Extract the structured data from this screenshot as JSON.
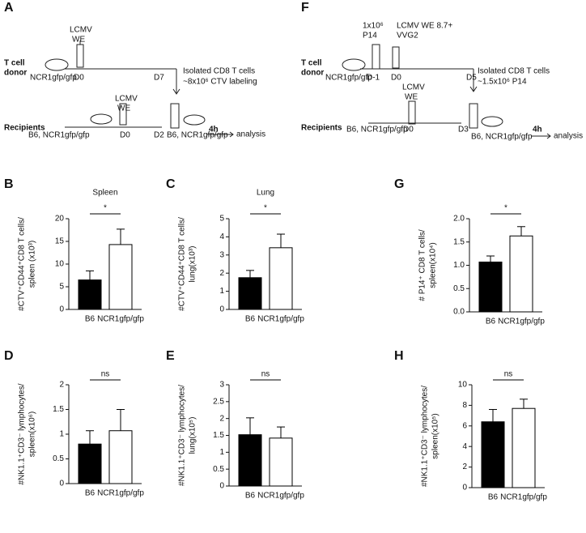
{
  "schematics": [
    {
      "panel": "A",
      "texts": [
        "LCMV",
        "WE",
        "T cell",
        "donor",
        "NCR1gfp/gfp",
        "D0",
        "D7",
        "Isolated CD8 T cells",
        "~8x10⁶ CTV labeling",
        "LCMV",
        "WE",
        "Recipients",
        "B6, NCR1gfp/gfp",
        "D0",
        "D2",
        "B6, NCR1gfp/gfp",
        "4h",
        "analysis"
      ]
    },
    {
      "panel": "F",
      "texts": [
        "1x10⁶",
        "P14",
        "LCMV WE 8.7+",
        "VVG2",
        "T cell",
        "donor",
        "NCR1gfp/gfp",
        "D-1",
        "D0",
        "D5",
        "Isolated CD8 T cells",
        "~1.5x10⁶ P14",
        "LCMV",
        "WE",
        "Recipients",
        "B6, NCR1gfp/gfp",
        "D0",
        "D3",
        "B6, NCR1gfp/gfp",
        "4h",
        "analysis"
      ]
    }
  ],
  "chart_data": [
    {
      "type": "bar",
      "panel": "B",
      "title": "Spleen",
      "ylabel": [
        "#CTV⁺CD44⁺CD8 T cells/",
        "spleen (x10³)"
      ],
      "categories": [
        "B6",
        "NCR1gfp/gfp"
      ],
      "values": [
        6.5,
        14.3
      ],
      "errors": [
        2,
        3.4
      ],
      "colors": [
        "#000000",
        "#ffffff"
      ],
      "ylim": [
        0,
        20
      ],
      "yticks": [
        0,
        5,
        10,
        15,
        20
      ],
      "significance": "*"
    },
    {
      "type": "bar",
      "panel": "C",
      "title": "Lung",
      "ylabel": [
        "#CTV⁺CD44⁺CD8 T cells/",
        "lung(x10³)"
      ],
      "categories": [
        "B6",
        "NCR1gfp/gfp"
      ],
      "values": [
        1.75,
        3.4
      ],
      "errors": [
        0.4,
        0.75
      ],
      "colors": [
        "#000000",
        "#ffffff"
      ],
      "ylim": [
        0,
        5
      ],
      "yticks": [
        0,
        1,
        2,
        3,
        4,
        5
      ],
      "significance": "*"
    },
    {
      "type": "bar",
      "panel": "G",
      "ylabel": [
        "# P14⁺ CD8 T cells/",
        "spleen(x10⁴)"
      ],
      "categories": [
        "B6",
        "NCR1gfp/gfp"
      ],
      "values": [
        1.07,
        1.63
      ],
      "errors": [
        0.13,
        0.2
      ],
      "colors": [
        "#000000",
        "#ffffff"
      ],
      "ylim": [
        0,
        2
      ],
      "yticks": [
        {
          "value": 0,
          "label": "0.0"
        },
        0.5,
        {
          "value": 1,
          "label": "1.0"
        },
        1.5,
        {
          "value": 2,
          "label": "2.0"
        }
      ],
      "significance": "*"
    },
    {
      "type": "bar",
      "panel": "D",
      "ylabel": [
        "#NK1.1⁺CD3⁻ lymphocytes/",
        "spleen(x10⁶)"
      ],
      "categories": [
        "B6",
        "NCR1gfp/gfp"
      ],
      "values": [
        0.8,
        1.07
      ],
      "errors": [
        0.27,
        0.43
      ],
      "colors": [
        "#000000",
        "#ffffff"
      ],
      "ylim": [
        0,
        2
      ],
      "yticks": [
        0,
        0.5,
        1,
        1.5,
        2
      ],
      "significance": "ns"
    },
    {
      "type": "bar",
      "panel": "E",
      "ylabel": [
        "#NK1.1⁺CD3⁻ lymphocytes/",
        "lung(x10⁵)"
      ],
      "categories": [
        "B6",
        "NCR1gfp/gfp"
      ],
      "values": [
        1.52,
        1.42
      ],
      "errors": [
        0.5,
        0.33
      ],
      "colors": [
        "#000000",
        "#ffffff"
      ],
      "ylim": [
        0,
        3
      ],
      "yticks": [
        0,
        0.5,
        1,
        1.5,
        2,
        2.5,
        3
      ],
      "significance": "ns"
    },
    {
      "type": "bar",
      "panel": "H",
      "ylabel": [
        "#NK1.1⁺CD3⁻ lymphocytes/",
        "spleen(x10⁵)"
      ],
      "categories": [
        "B6",
        "NCR1gfp/gfp"
      ],
      "values": [
        6.4,
        7.7
      ],
      "errors": [
        1.2,
        0.9
      ],
      "colors": [
        "#000000",
        "#ffffff"
      ],
      "ylim": [
        0,
        10
      ],
      "yticks": [
        0,
        2,
        4,
        6,
        8,
        10
      ],
      "significance": "ns"
    }
  ]
}
